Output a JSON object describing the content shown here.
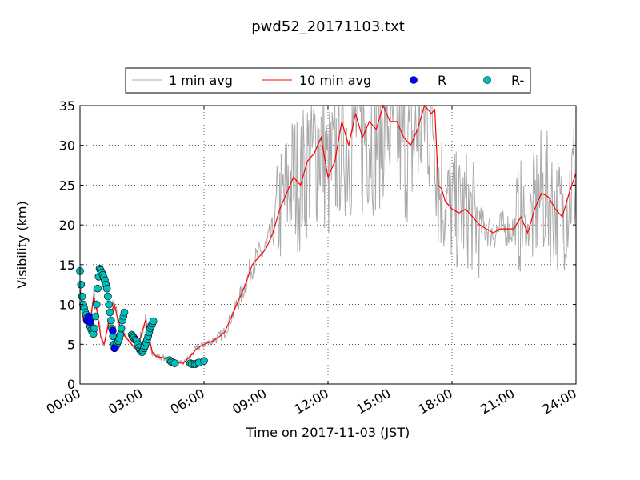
{
  "chart_data": {
    "type": "line",
    "title": "pwd52_20171103.txt",
    "xlabel": "Time on 2017-11-03 (JST)",
    "ylabel": "Visibility (km)",
    "xlim": [
      "00:00",
      "24:00"
    ],
    "ylim": [
      0,
      35
    ],
    "xticks": [
      "00:00",
      "03:00",
      "06:00",
      "09:00",
      "12:00",
      "15:00",
      "18:00",
      "21:00",
      "24:00"
    ],
    "yticks": [
      "0",
      "5",
      "10",
      "15",
      "20",
      "25",
      "30",
      "35"
    ],
    "grid": true,
    "legend": {
      "placement": "top-center",
      "entries": [
        "1 min avg",
        "10 min avg",
        "R",
        "R-"
      ]
    },
    "colors": {
      "one_min": "#a9a9a9",
      "ten_min": "#ff0000",
      "R": "#0000ff",
      "R_minus": "#00bfbf"
    },
    "series": [
      {
        "name": "10 min avg",
        "x": [
          "00:00",
          "00:10",
          "00:20",
          "00:30",
          "00:40",
          "00:50",
          "01:00",
          "01:10",
          "01:20",
          "01:30",
          "01:40",
          "01:50",
          "02:00",
          "02:10",
          "02:20",
          "02:30",
          "02:40",
          "02:50",
          "03:00",
          "03:10",
          "03:20",
          "03:30",
          "03:40",
          "03:50",
          "04:00",
          "04:20",
          "04:40",
          "05:00",
          "05:20",
          "05:40",
          "06:00",
          "06:20",
          "06:40",
          "07:00",
          "07:20",
          "07:40",
          "08:00",
          "08:20",
          "08:40",
          "09:00",
          "09:20",
          "09:40",
          "10:00",
          "10:20",
          "10:40",
          "11:00",
          "11:20",
          "11:40",
          "12:00",
          "12:20",
          "12:40",
          "13:00",
          "13:20",
          "13:40",
          "14:00",
          "14:20",
          "14:40",
          "15:00",
          "15:20",
          "15:40",
          "16:00",
          "16:20",
          "16:40",
          "17:00",
          "17:10",
          "17:20",
          "17:30",
          "17:40",
          "17:50",
          "18:00",
          "18:20",
          "18:40",
          "19:00",
          "19:20",
          "19:40",
          "20:00",
          "20:20",
          "20:40",
          "21:00",
          "21:20",
          "21:40",
          "22:00",
          "22:20",
          "22:40",
          "23:00",
          "23:20",
          "23:40",
          "24:00"
        ],
        "y": [
          12,
          8,
          7.5,
          8,
          11,
          9,
          6,
          5,
          7,
          9,
          10,
          8,
          7,
          6,
          5.5,
          5,
          4.5,
          5,
          6.5,
          8,
          6,
          4,
          3.5,
          3.4,
          3.3,
          3,
          2.7,
          2.6,
          3.5,
          4.5,
          5,
          5.3,
          5.8,
          6.5,
          8.5,
          10.5,
          12.5,
          15,
          16,
          17,
          19,
          22,
          24,
          26,
          25,
          28,
          29,
          31,
          26,
          28,
          33,
          30,
          34,
          31,
          33,
          32,
          35,
          33,
          33,
          31,
          30,
          32,
          35,
          34,
          34.5,
          25,
          24.5,
          23,
          22.5,
          22,
          21.5,
          22,
          21,
          20,
          19.5,
          19,
          19.5,
          19.5,
          19.5,
          21,
          19,
          22,
          24,
          23.5,
          22,
          21,
          24,
          26.5
        ]
      },
      {
        "name": "R",
        "x": [
          "00:20",
          "00:25",
          "00:30",
          "01:35",
          "01:40"
        ],
        "y": [
          8,
          8.5,
          7.8,
          6.7,
          4.5
        ]
      },
      {
        "name": "R-",
        "x": [
          "00:00",
          "00:03",
          "00:06",
          "00:09",
          "00:12",
          "00:15",
          "00:18",
          "00:21",
          "00:24",
          "00:27",
          "00:30",
          "00:33",
          "00:36",
          "00:39",
          "00:42",
          "00:45",
          "00:48",
          "00:51",
          "00:54",
          "00:57",
          "01:00",
          "01:03",
          "01:06",
          "01:09",
          "01:12",
          "01:15",
          "01:18",
          "01:21",
          "01:24",
          "01:27",
          "01:30",
          "01:33",
          "01:36",
          "01:39",
          "01:42",
          "01:45",
          "01:48",
          "01:51",
          "01:54",
          "01:57",
          "02:00",
          "02:03",
          "02:06",
          "02:09",
          "02:30",
          "02:33",
          "02:36",
          "02:39",
          "02:42",
          "02:45",
          "02:48",
          "02:51",
          "02:54",
          "02:57",
          "03:00",
          "03:03",
          "03:06",
          "03:09",
          "03:12",
          "03:15",
          "03:18",
          "03:21",
          "03:24",
          "03:27",
          "03:30",
          "03:33",
          "04:20",
          "04:25",
          "04:30",
          "04:35",
          "05:20",
          "05:25",
          "05:30",
          "05:35",
          "05:40",
          "05:45",
          "06:00"
        ],
        "y": [
          14.2,
          12.5,
          11,
          10,
          9.5,
          9,
          8.7,
          8.3,
          8,
          7.5,
          7.2,
          6.8,
          6.5,
          6.3,
          7,
          8.5,
          10,
          12,
          13.5,
          14.5,
          14.3,
          14,
          13.7,
          13.4,
          13,
          12.5,
          12,
          11,
          10,
          9,
          8,
          7,
          6,
          5,
          4.6,
          4.8,
          5.1,
          5.4,
          5.7,
          6.2,
          7,
          8,
          8.5,
          9,
          6.2,
          6,
          5.8,
          5.6,
          5.5,
          5.4,
          5,
          4.6,
          4.3,
          4.1,
          4,
          4.2,
          4.5,
          4.8,
          5.2,
          5.6,
          6,
          6.5,
          7,
          7.3,
          7.6,
          7.9,
          3,
          2.8,
          2.7,
          2.6,
          2.6,
          2.5,
          2.5,
          2.5,
          2.6,
          2.7,
          2.9
        ]
      }
    ]
  }
}
